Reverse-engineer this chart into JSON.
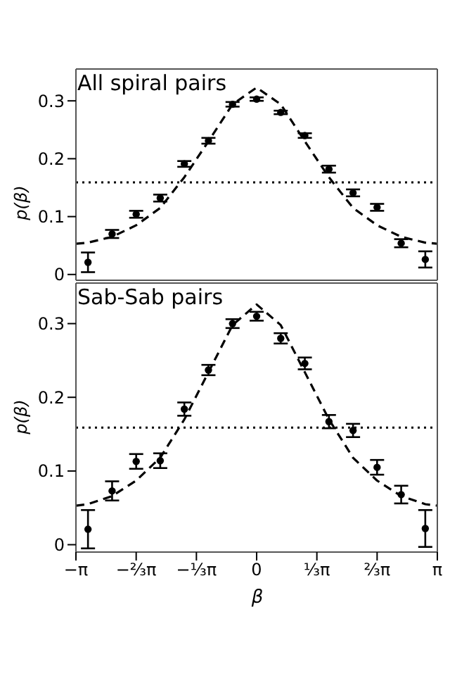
{
  "chart_data": [
    {
      "type": "scatter",
      "title": "All spiral pairs",
      "ylabel": "p(β)",
      "xlim": [
        -3.1416,
        3.1416
      ],
      "ylim": [
        -0.01,
        0.355
      ],
      "xticks": [
        {
          "value": -3.1416,
          "label": null
        },
        {
          "value": -2.0944,
          "label": null
        },
        {
          "value": -1.0472,
          "label": null
        },
        {
          "value": 0,
          "label": null
        },
        {
          "value": 1.0472,
          "label": null
        },
        {
          "value": 2.0944,
          "label": null
        },
        {
          "value": 3.1416,
          "label": null
        }
      ],
      "yticks": [
        0,
        0.1,
        0.2,
        0.3
      ],
      "tick_labels": "y",
      "grid": false,
      "legend": false,
      "series": [
        {
          "type": "scatter",
          "color": "#000000",
          "marker": "circle",
          "x": [
            -2.932,
            -2.513,
            -2.094,
            -1.676,
            -1.257,
            -0.838,
            -0.419,
            0,
            0.419,
            0.838,
            1.257,
            1.676,
            2.094,
            2.513,
            2.932
          ],
          "values": [
            0.021,
            0.07,
            0.104,
            0.132,
            0.191,
            0.231,
            0.294,
            0.303,
            0.28,
            0.24,
            0.182,
            0.141,
            0.116,
            0.054,
            0.026
          ],
          "errors": [
            0.017,
            0.007,
            0.006,
            0.006,
            0.005,
            0.005,
            0.004,
            0.003,
            0.003,
            0.004,
            0.006,
            0.006,
            0.006,
            0.007,
            0.014
          ]
        },
        {
          "type": "line",
          "color": "#000000",
          "line_style": "dashed",
          "marker": "none",
          "x": [
            -3.1416,
            -2.932,
            -2.513,
            -2.094,
            -1.676,
            -1.257,
            -0.838,
            -0.419,
            0,
            0.419,
            0.838,
            1.257,
            1.676,
            2.094,
            2.513,
            2.932,
            3.1416
          ],
          "values": [
            0.053,
            0.055,
            0.065,
            0.085,
            0.115,
            0.168,
            0.23,
            0.294,
            0.323,
            0.294,
            0.23,
            0.168,
            0.115,
            0.085,
            0.065,
            0.055,
            0.053
          ]
        }
      ],
      "ref_lines": [
        {
          "axis": "y",
          "value": 0.159,
          "color": "#000000",
          "line_style": "dotted"
        }
      ]
    },
    {
      "type": "scatter",
      "title": "Sab-Sab pairs",
      "xlabel": "β",
      "ylabel": "p(β)",
      "xlim": [
        -3.1416,
        3.1416
      ],
      "ylim": [
        -0.01,
        0.355
      ],
      "xticks": [
        {
          "value": -3.1416,
          "label": "−π"
        },
        {
          "value": -2.0944,
          "label": "−⅔π"
        },
        {
          "value": -1.0472,
          "label": "−⅓π"
        },
        {
          "value": 0,
          "label": "0"
        },
        {
          "value": 1.0472,
          "label": "⅓π"
        },
        {
          "value": 2.0944,
          "label": "⅔π"
        },
        {
          "value": 3.1416,
          "label": "π"
        }
      ],
      "yticks": [
        0,
        0.1,
        0.2,
        0.3
      ],
      "grid": false,
      "legend": false,
      "series": [
        {
          "type": "scatter",
          "color": "#000000",
          "marker": "circle",
          "x": [
            -2.932,
            -2.513,
            -2.094,
            -1.676,
            -1.257,
            -0.838,
            -0.419,
            0,
            0.419,
            0.838,
            1.257,
            1.676,
            2.094,
            2.513,
            2.932
          ],
          "values": [
            0.021,
            0.073,
            0.113,
            0.114,
            0.184,
            0.237,
            0.3,
            0.31,
            0.28,
            0.246,
            0.167,
            0.155,
            0.105,
            0.068,
            0.022
          ],
          "errors": [
            0.026,
            0.013,
            0.01,
            0.01,
            0.009,
            0.007,
            0.006,
            0.006,
            0.007,
            0.008,
            0.009,
            0.009,
            0.01,
            0.012,
            0.025
          ]
        },
        {
          "type": "line",
          "color": "#000000",
          "line_style": "dashed",
          "marker": "none",
          "x": [
            -3.1416,
            -2.932,
            -2.513,
            -2.094,
            -1.676,
            -1.257,
            -0.838,
            -0.419,
            0,
            0.419,
            0.838,
            1.257,
            1.676,
            2.094,
            2.513,
            2.932,
            3.1416
          ],
          "values": [
            0.053,
            0.055,
            0.066,
            0.087,
            0.118,
            0.17,
            0.234,
            0.298,
            0.326,
            0.298,
            0.234,
            0.17,
            0.118,
            0.087,
            0.066,
            0.055,
            0.053
          ]
        }
      ],
      "ref_lines": [
        {
          "axis": "y",
          "value": 0.159,
          "color": "#000000",
          "line_style": "dotted"
        }
      ]
    }
  ]
}
